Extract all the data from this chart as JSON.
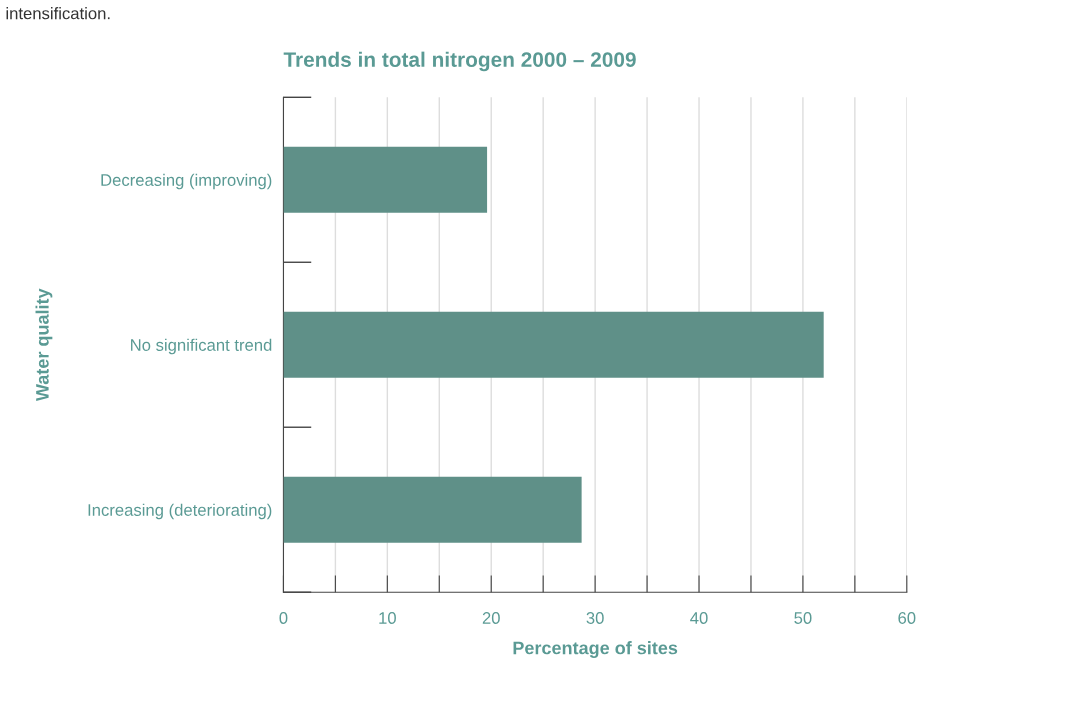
{
  "chart_data": {
    "type": "bar",
    "orientation": "horizontal",
    "title": "Trends in total nitrogen 2000 – 2009",
    "xlabel": "Percentage of sites",
    "ylabel": "Water quality",
    "categories": [
      "Decreasing (improving)",
      "No significant trend",
      "Increasing (deteriorating)"
    ],
    "values": [
      19.6,
      52.0,
      28.7
    ],
    "color": "#5f9088",
    "xlim": [
      0,
      60
    ],
    "xticks": [
      0,
      {
        "value": 5,
        "label": null
      },
      10,
      {
        "value": 15,
        "label": null
      },
      20,
      {
        "value": 25,
        "label": null
      },
      30,
      {
        "value": 35,
        "label": null
      },
      40,
      {
        "value": 45,
        "label": null
      },
      50,
      {
        "value": 55,
        "label": null
      },
      60
    ],
    "grid": "x",
    "annotations": [
      "intensification."
    ]
  }
}
